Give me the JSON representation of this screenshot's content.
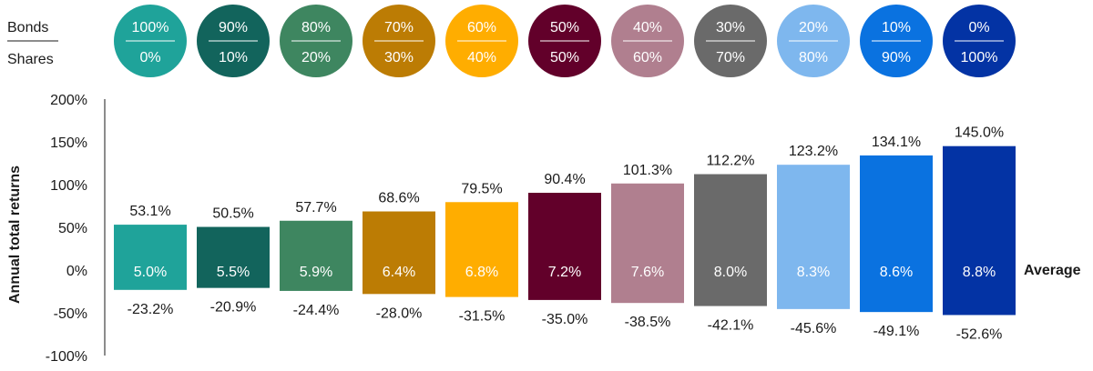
{
  "chart_data": {
    "type": "bar",
    "ylabel": "Annual total returns",
    "ylim": [
      -100,
      200
    ],
    "yticks": [
      "200%",
      "150%",
      "100%",
      "50%",
      "0%",
      "-50%",
      "-100%"
    ],
    "ytick_values": [
      200,
      150,
      100,
      50,
      0,
      -50,
      -100
    ],
    "header_labels": {
      "bonds": "Bonds",
      "shares": "Shares"
    },
    "average_label": "Average",
    "categories": [
      {
        "bonds": "100%",
        "shares": "0%"
      },
      {
        "bonds": "90%",
        "shares": "10%"
      },
      {
        "bonds": "80%",
        "shares": "20%"
      },
      {
        "bonds": "70%",
        "shares": "30%"
      },
      {
        "bonds": "60%",
        "shares": "40%"
      },
      {
        "bonds": "50%",
        "shares": "50%"
      },
      {
        "bonds": "40%",
        "shares": "60%"
      },
      {
        "bonds": "30%",
        "shares": "70%"
      },
      {
        "bonds": "20%",
        "shares": "80%"
      },
      {
        "bonds": "10%",
        "shares": "90%"
      },
      {
        "bonds": "0%",
        "shares": "100%"
      }
    ],
    "max": [
      53.1,
      50.5,
      57.7,
      68.6,
      79.5,
      90.4,
      101.3,
      112.2,
      123.2,
      134.1,
      145.0
    ],
    "min": [
      -23.2,
      -20.9,
      -24.4,
      -28.0,
      -31.5,
      -35.0,
      -38.5,
      -42.1,
      -45.6,
      -49.1,
      -52.6
    ],
    "average": [
      5.0,
      5.5,
      5.9,
      6.4,
      6.8,
      7.2,
      7.6,
      8.0,
      8.3,
      8.6,
      8.8
    ],
    "max_labels": [
      "53.1%",
      "50.5%",
      "57.7%",
      "68.6%",
      "79.5%",
      "90.4%",
      "101.3%",
      "112.2%",
      "123.2%",
      "134.1%",
      "145.0%"
    ],
    "min_labels": [
      "-23.2%",
      "-20.9%",
      "-24.4%",
      "-28.0%",
      "-31.5%",
      "-35.0%",
      "-38.5%",
      "-42.1%",
      "-45.6%",
      "-49.1%",
      "-52.6%"
    ],
    "average_labels": [
      "5.0%",
      "5.5%",
      "5.9%",
      "6.4%",
      "6.8%",
      "7.2%",
      "7.6%",
      "8.0%",
      "8.3%",
      "8.6%",
      "8.8%"
    ],
    "colors": [
      "#1fa39a",
      "#12645c",
      "#3e8660",
      "#bc7c04",
      "#ffad00",
      "#62002a",
      "#b07f8f",
      "#6a6a6a",
      "#7eb7ee",
      "#0a72e0",
      "#0333a4"
    ],
    "grid": false,
    "legend": "none"
  }
}
